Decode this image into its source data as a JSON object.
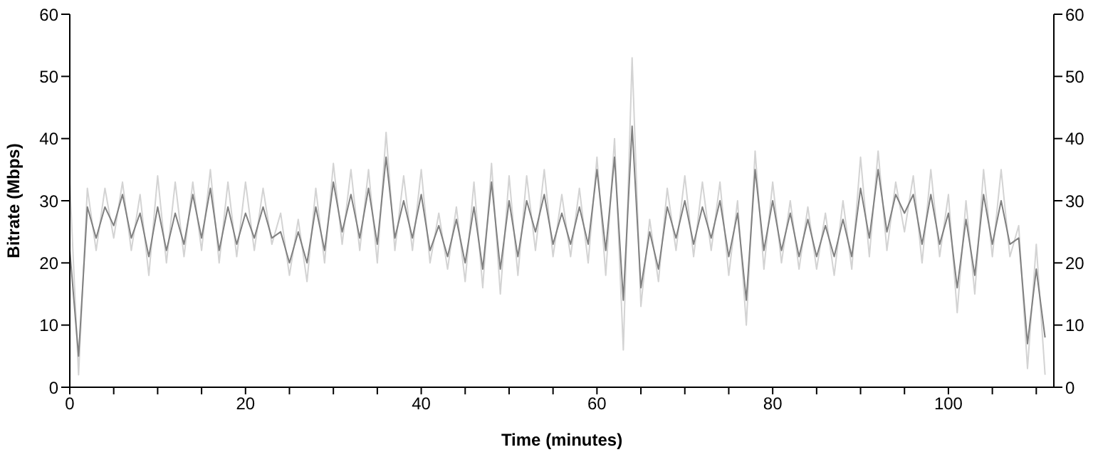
{
  "chart_data": {
    "type": "line",
    "xlabel": "Time (minutes)",
    "ylabel": "Bitrate (Mbps)",
    "x": [
      0,
      1,
      2,
      3,
      4,
      5,
      6,
      7,
      8,
      9,
      10,
      11,
      12,
      13,
      14,
      15,
      16,
      17,
      18,
      19,
      20,
      21,
      22,
      23,
      24,
      25,
      26,
      27,
      28,
      29,
      30,
      31,
      32,
      33,
      34,
      35,
      36,
      37,
      38,
      39,
      40,
      41,
      42,
      43,
      44,
      45,
      46,
      47,
      48,
      49,
      50,
      51,
      52,
      53,
      54,
      55,
      56,
      57,
      58,
      59,
      60,
      61,
      62,
      63,
      64,
      65,
      66,
      67,
      68,
      69,
      70,
      71,
      72,
      73,
      74,
      75,
      76,
      77,
      78,
      79,
      80,
      81,
      82,
      83,
      84,
      85,
      86,
      87,
      88,
      89,
      90,
      91,
      92,
      93,
      94,
      95,
      96,
      97,
      98,
      99,
      100,
      101,
      102,
      103,
      104,
      105,
      106,
      107,
      108,
      109,
      110,
      111
    ],
    "series": [
      {
        "color": "#d3d3d3",
        "values": [
          33,
          2,
          32,
          22,
          32,
          24,
          33,
          22,
          31,
          18,
          34,
          20,
          33,
          21,
          33,
          22,
          35,
          20,
          33,
          21,
          33,
          22,
          32,
          23,
          28,
          18,
          27,
          17,
          32,
          20,
          36,
          23,
          35,
          22,
          35,
          20,
          41,
          22,
          34,
          22,
          35,
          20,
          28,
          19,
          29,
          17,
          33,
          16,
          36,
          15,
          34,
          18,
          34,
          22,
          35,
          21,
          31,
          21,
          32,
          20,
          37,
          18,
          40,
          6,
          53,
          13,
          27,
          17,
          32,
          22,
          34,
          21,
          33,
          22,
          33,
          18,
          30,
          10,
          38,
          19,
          33,
          20,
          30,
          19,
          29,
          19,
          28,
          18,
          30,
          19,
          37,
          21,
          38,
          22,
          33,
          25,
          34,
          20,
          35,
          21,
          31,
          12,
          30,
          15,
          35,
          21,
          35,
          21,
          26,
          3,
          23,
          2
        ]
      },
      {
        "color": "#808080",
        "values": [
          22,
          5,
          29,
          24,
          29,
          26,
          31,
          24,
          28,
          21,
          29,
          22,
          28,
          23,
          31,
          24,
          32,
          22,
          29,
          23,
          28,
          24,
          29,
          24,
          25,
          20,
          25,
          20,
          29,
          22,
          33,
          25,
          31,
          24,
          32,
          23,
          37,
          24,
          30,
          24,
          31,
          22,
          26,
          21,
          27,
          20,
          29,
          19,
          33,
          19,
          30,
          21,
          30,
          25,
          31,
          23,
          28,
          23,
          29,
          23,
          35,
          22,
          37,
          14,
          42,
          16,
          25,
          19,
          29,
          24,
          30,
          23,
          29,
          24,
          30,
          21,
          28,
          14,
          35,
          22,
          30,
          22,
          28,
          21,
          27,
          21,
          26,
          21,
          27,
          21,
          32,
          24,
          35,
          25,
          31,
          28,
          31,
          23,
          31,
          23,
          28,
          16,
          27,
          18,
          31,
          23,
          30,
          23,
          24,
          7,
          19,
          8
        ]
      }
    ],
    "xlim": [
      0,
      112
    ],
    "xticks": [
      0,
      {
        "value": 5,
        "label": null
      },
      {
        "value": 10,
        "label": null
      },
      {
        "value": 15,
        "label": null
      },
      20,
      {
        "value": 25,
        "label": null
      },
      {
        "value": 30,
        "label": null
      },
      {
        "value": 35,
        "label": null
      },
      40,
      {
        "value": 45,
        "label": null
      },
      {
        "value": 50,
        "label": null
      },
      {
        "value": 55,
        "label": null
      },
      60,
      {
        "value": 65,
        "label": null
      },
      {
        "value": 70,
        "label": null
      },
      {
        "value": 75,
        "label": null
      },
      80,
      {
        "value": 85,
        "label": null
      },
      {
        "value": 90,
        "label": null
      },
      {
        "value": 95,
        "label": null
      },
      100,
      {
        "value": 105,
        "label": null
      },
      {
        "value": 110,
        "label": null
      }
    ],
    "ylim": [
      0,
      60
    ],
    "yticks": [
      0,
      10,
      20,
      30,
      40,
      50,
      60
    ],
    "y2lim": [
      0,
      60
    ],
    "y2ticks": [
      0,
      10,
      20,
      30,
      40,
      50,
      60
    ],
    "grid": false,
    "legend": false,
    "marker": "none",
    "line_style": "solid"
  }
}
